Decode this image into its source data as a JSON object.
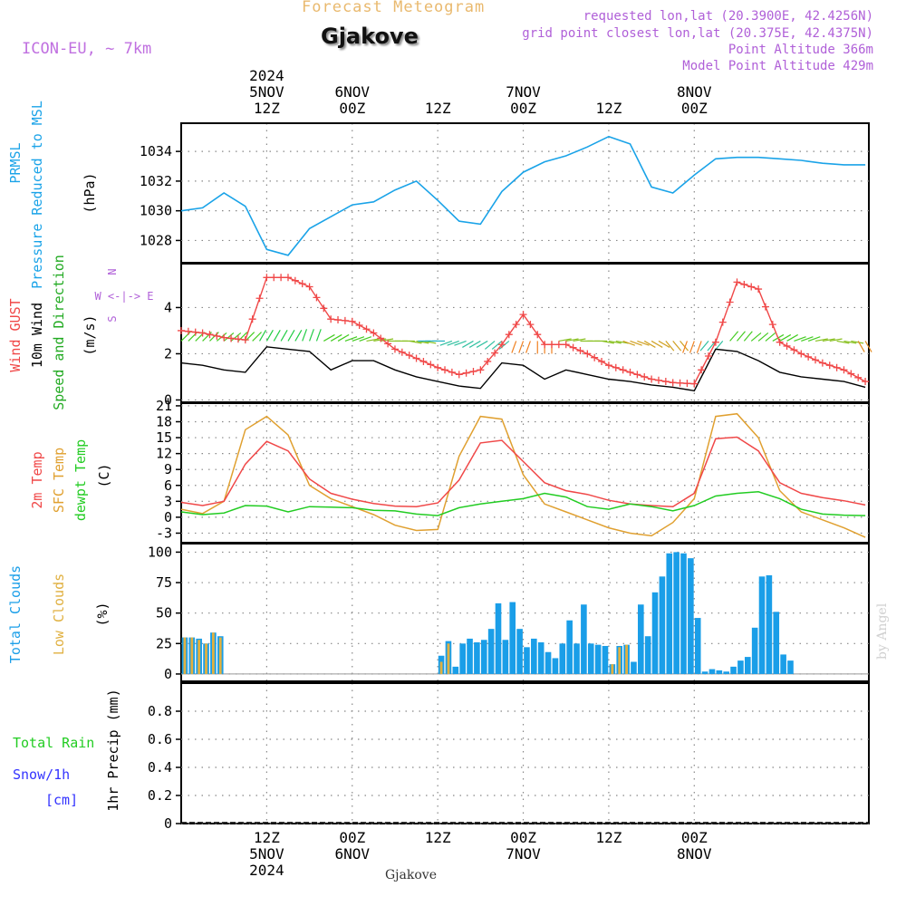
{
  "header": {
    "title": "Forecast Meteogram",
    "location": "Gjakove",
    "model": "ICON-EU, ~ 7km",
    "requested": "requested lon,lat (20.3900E, 42.4256N)",
    "grid_point": "grid point closest lon,lat (20.375E, 42.4375N)",
    "point_altitude": "Point Altitude 366m",
    "model_altitude": "Model Point Altitude 429m",
    "credit": "by Angel",
    "bottom_label": "Gjakove"
  },
  "time_axis": {
    "top_ticks": [
      {
        "lines": [
          "2024",
          "5NOV",
          "12Z"
        ]
      },
      {
        "lines": [
          "6NOV",
          "00Z"
        ]
      },
      {
        "lines": [
          "12Z"
        ]
      },
      {
        "lines": [
          "7NOV",
          "00Z"
        ]
      },
      {
        "lines": [
          "12Z"
        ]
      },
      {
        "lines": [
          "8NOV",
          "00Z"
        ]
      }
    ],
    "bottom_ticks": [
      {
        "lines": [
          "12Z",
          "5NOV",
          "2024"
        ]
      },
      {
        "lines": [
          "00Z",
          "6NOV"
        ]
      },
      {
        "lines": [
          "12Z"
        ]
      },
      {
        "lines": [
          "00Z",
          "7NOV"
        ]
      },
      {
        "lines": [
          "12Z"
        ]
      },
      {
        "lines": [
          "00Z",
          "8NOV"
        ]
      }
    ]
  },
  "colors": {
    "pressure": "#1aa3e8",
    "gust": "#f04848",
    "wind": "#000000",
    "temp2m": "#f04848",
    "sfctemp": "#e0a030",
    "dewpt": "#22cc22",
    "total_clouds": "#1a9ee8",
    "low_clouds": "#e0b040",
    "rain": "#22cc22",
    "snow": "#3333ff",
    "purple": "#b060d8"
  },
  "chart_data": [
    {
      "type": "line",
      "panel": "pressure",
      "ylabel": [
        "PRMSL",
        "Pressure Reduced to MSL"
      ],
      "unit": "(hPa)",
      "yticks": [
        1028,
        1030,
        1032,
        1034
      ],
      "ylim": [
        1026.5,
        1035.9
      ],
      "x_hours": [
        0,
        3,
        6,
        9,
        12,
        15,
        18,
        21,
        24,
        27,
        30,
        33,
        36,
        39,
        42,
        45,
        48,
        51,
        54,
        57,
        60,
        63,
        66,
        69,
        72,
        75,
        78,
        81,
        84,
        87,
        90,
        93,
        96
      ],
      "series": [
        {
          "values": [
            1030.0,
            1030.2,
            1031.2,
            1030.3,
            1027.4,
            1027.0,
            1028.8,
            1029.6,
            1030.4,
            1030.6,
            1031.4,
            1032.0,
            1030.7,
            1029.3,
            1029.1,
            1031.3,
            1032.6,
            1033.3,
            1033.7,
            1034.3,
            1035.0,
            1034.5,
            1031.6,
            1031.2,
            1032.4,
            1033.5,
            1033.6,
            1033.6,
            1033.5,
            1033.4,
            1033.2,
            1033.1,
            1033.1
          ]
        }
      ]
    },
    {
      "type": "line",
      "panel": "wind",
      "ylabel": [
        "Wind GUST",
        "10m Wind",
        "Speed and Direction"
      ],
      "unit": "(m/s)",
      "compass": [
        "N",
        "W <-|-> E",
        "S"
      ],
      "yticks": [
        0,
        2,
        4
      ],
      "ylim": [
        -0.1,
        5.9
      ],
      "x_hours": [
        0,
        3,
        6,
        9,
        12,
        15,
        18,
        21,
        24,
        27,
        30,
        33,
        36,
        39,
        42,
        45,
        48,
        51,
        54,
        57,
        60,
        63,
        66,
        69,
        72,
        75,
        78,
        81,
        84,
        87,
        90,
        93,
        96
      ],
      "series": [
        {
          "name": "Wind GUST",
          "values": [
            3.0,
            2.9,
            2.7,
            2.6,
            5.3,
            5.3,
            4.9,
            3.5,
            3.4,
            2.9,
            2.2,
            1.8,
            1.4,
            1.1,
            1.3,
            2.4,
            3.7,
            2.4,
            2.4,
            2.0,
            1.5,
            1.2,
            0.9,
            0.75,
            0.7,
            2.5,
            5.1,
            4.8,
            2.5,
            2.0,
            1.6,
            1.3,
            0.8
          ]
        },
        {
          "name": "10m Wind",
          "values": [
            1.6,
            1.5,
            1.3,
            1.2,
            2.3,
            2.2,
            2.1,
            1.3,
            1.7,
            1.7,
            1.3,
            1.0,
            0.8,
            0.6,
            0.5,
            1.6,
            1.5,
            0.9,
            1.3,
            1.1,
            0.9,
            0.8,
            0.65,
            0.55,
            0.4,
            2.2,
            2.1,
            1.7,
            1.2,
            1.0,
            0.9,
            0.8,
            0.55
          ]
        }
      ],
      "wind_dir_deg": [
        45,
        45,
        50,
        45,
        30,
        30,
        20,
        60,
        70,
        80,
        90,
        100,
        270,
        250,
        240,
        230,
        200,
        180,
        80,
        90,
        100,
        110,
        120,
        140,
        200,
        220,
        40,
        50,
        60,
        70,
        80,
        100,
        150
      ]
    },
    {
      "type": "line",
      "panel": "temperature",
      "ylabel": [
        "2m Temp",
        "SFC Temp",
        "dewpt Temp"
      ],
      "unit": "(C)",
      "yticks": [
        -3,
        0,
        3,
        6,
        9,
        12,
        15,
        18,
        21
      ],
      "ylim": [
        -4.8,
        21.5
      ],
      "x_hours": [
        0,
        3,
        6,
        9,
        12,
        15,
        18,
        21,
        24,
        27,
        30,
        33,
        36,
        39,
        42,
        45,
        48,
        51,
        54,
        57,
        60,
        63,
        66,
        69,
        72,
        75,
        78,
        81,
        84,
        87,
        90,
        93,
        96
      ],
      "series": [
        {
          "name": "2m Temp",
          "values": [
            2.8,
            2.2,
            3.0,
            10.0,
            14.3,
            12.5,
            7.2,
            4.5,
            3.4,
            2.6,
            2.1,
            2.0,
            2.7,
            7.0,
            14.0,
            14.5,
            10.5,
            6.5,
            5.0,
            4.3,
            3.2,
            2.5,
            2.2,
            2.0,
            4.5,
            14.8,
            15.1,
            12.5,
            6.5,
            4.5,
            3.7,
            3.1,
            2.3
          ]
        },
        {
          "name": "SFC Temp",
          "values": [
            1.5,
            0.7,
            3.0,
            16.5,
            19.0,
            15.5,
            6.0,
            3.5,
            2.0,
            0.5,
            -1.5,
            -2.5,
            -2.3,
            11.5,
            19.0,
            18.5,
            8.0,
            2.5,
            1.0,
            -0.5,
            -2.0,
            -3.0,
            -3.5,
            -1.0,
            3.5,
            19.0,
            19.5,
            15.0,
            5.0,
            1.0,
            -0.5,
            -2.0,
            -3.8
          ]
        },
        {
          "name": "dewpt Temp",
          "values": [
            1.0,
            0.5,
            0.8,
            2.2,
            2.1,
            1.0,
            2.0,
            1.9,
            1.8,
            1.3,
            1.2,
            0.6,
            0.3,
            1.8,
            2.5,
            3.0,
            3.5,
            4.5,
            3.8,
            2.0,
            1.5,
            2.5,
            2.0,
            1.2,
            2.2,
            4.0,
            4.5,
            4.8,
            3.5,
            1.5,
            0.6,
            0.4,
            0.3
          ]
        }
      ]
    },
    {
      "type": "bar",
      "panel": "clouds",
      "ylabel": [
        "Total Clouds",
        "Low Clouds"
      ],
      "unit": "(%)",
      "yticks": [
        0,
        25,
        50,
        75,
        100
      ],
      "ylim": [
        -6,
        107
      ],
      "x_hours": [
        0,
        1,
        2,
        3,
        4,
        5,
        6,
        7,
        8,
        9,
        10,
        11,
        12,
        13,
        14,
        15,
        16,
        17,
        18,
        19,
        20,
        21,
        22,
        23,
        24,
        25,
        26,
        27,
        28,
        29,
        30,
        31,
        32,
        33,
        34,
        35,
        36,
        37,
        38,
        39,
        40,
        41,
        42,
        43,
        44,
        45,
        46,
        47,
        48,
        49,
        50,
        51,
        52,
        53,
        54,
        55,
        56,
        57,
        58,
        59,
        60,
        61,
        62,
        63,
        64,
        65,
        66,
        67,
        68,
        69,
        70,
        71,
        72,
        73,
        74,
        75,
        76,
        77,
        78,
        79,
        80,
        81,
        82,
        83,
        84,
        85,
        86,
        87,
        88,
        89,
        90,
        91,
        92,
        93,
        94,
        95,
        96
      ],
      "series": [
        {
          "name": "Total Clouds",
          "values": [
            30,
            30,
            29,
            25,
            34,
            31,
            0,
            0,
            0,
            0,
            0,
            0,
            0,
            0,
            0,
            0,
            0,
            0,
            0,
            0,
            0,
            0,
            0,
            0,
            0,
            0,
            0,
            0,
            0,
            0,
            0,
            0,
            0,
            0,
            0,
            0,
            15,
            27,
            6,
            25,
            29,
            26,
            28,
            37,
            58,
            28,
            59,
            37,
            22,
            29,
            26,
            18,
            13,
            25,
            44,
            25,
            57,
            25,
            24,
            23,
            8,
            23,
            24,
            10,
            57,
            31,
            67,
            80,
            99,
            100,
            99,
            95,
            46,
            2,
            4,
            3,
            2,
            6,
            11,
            14,
            38,
            80,
            81,
            51,
            16,
            11,
            0,
            0,
            0,
            0,
            0,
            0,
            0,
            0,
            0,
            0,
            0
          ]
        },
        {
          "name": "Low Clouds",
          "values": [
            30,
            30,
            28,
            25,
            34,
            30,
            0,
            0,
            0,
            0,
            0,
            0,
            0,
            0,
            0,
            0,
            0,
            0,
            0,
            0,
            0,
            0,
            0,
            0,
            0,
            0,
            0,
            0,
            0,
            0,
            0,
            0,
            0,
            0,
            0,
            0,
            10,
            25,
            0,
            0,
            0,
            0,
            0,
            0,
            0,
            0,
            0,
            0,
            0,
            0,
            0,
            0,
            0,
            0,
            0,
            0,
            0,
            0,
            0,
            0,
            8,
            22,
            24,
            0,
            0,
            0,
            0,
            0,
            0,
            0,
            0,
            0,
            0,
            0,
            0,
            0,
            0,
            0,
            0,
            0,
            0,
            0,
            0,
            0,
            0,
            0,
            0,
            0,
            0,
            0,
            0,
            0,
            0,
            0,
            0,
            0,
            0
          ]
        }
      ]
    },
    {
      "type": "bar",
      "panel": "precip",
      "ylabel": [
        "Total Rain",
        "Snow/1h",
        "[cm]"
      ],
      "unit": "1hr Precip (mm)",
      "yticks": [
        "0",
        "0.2",
        "0.4",
        "0.6",
        "0.8"
      ],
      "ylim": [
        0,
        1.0
      ],
      "series": [
        {
          "name": "Total Rain",
          "values": []
        },
        {
          "name": "Snow/1h",
          "values": []
        }
      ]
    }
  ]
}
